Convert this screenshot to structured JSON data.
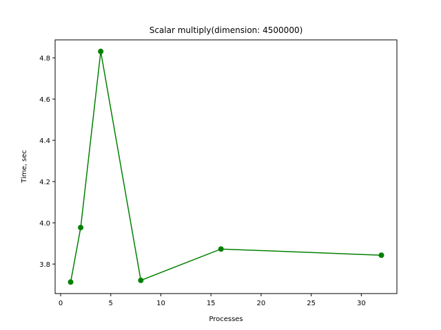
{
  "chart_data": {
    "type": "line",
    "title": "Scalar multiply(dimension: 4500000)",
    "xlabel": "Processes",
    "ylabel": "Time, sec",
    "x": [
      1,
      2,
      4,
      8,
      16,
      32
    ],
    "series": [
      {
        "values": [
          3.713,
          3.977,
          4.831,
          3.721,
          3.873,
          3.843
        ],
        "color": "#008000"
      }
    ],
    "xlim": [
      -0.55,
      33.55
    ],
    "ylim": [
      3.657,
      4.887
    ],
    "xticks": [
      0,
      5,
      10,
      15,
      20,
      25,
      30
    ],
    "xtick_labels": [
      "0",
      "5",
      "10",
      "15",
      "20",
      "25",
      "30"
    ],
    "yticks": [
      3.8,
      4.0,
      4.2,
      4.4,
      4.6,
      4.8
    ],
    "ytick_labels": [
      "3.8",
      "4.0",
      "4.2",
      "4.4",
      "4.6",
      "4.8"
    ],
    "grid": false,
    "marker": "circle"
  }
}
